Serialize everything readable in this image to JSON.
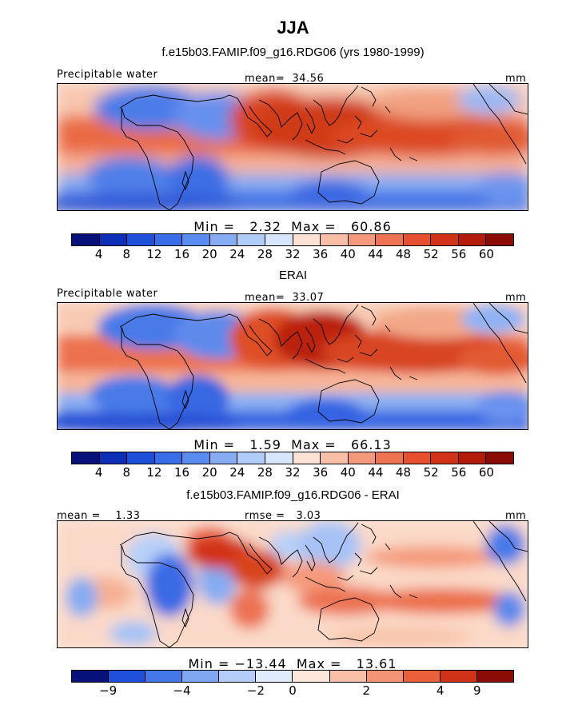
{
  "figure": {
    "title": "JJA",
    "subtitle": "f.e15b03.FAMIP.f09_g16.RDG06 (yrs 1980-1999)"
  },
  "chart_data": [
    {
      "type": "heatmap",
      "panel_label": "Precipitable water",
      "mean_label": "mean=  34.56",
      "units": "mm",
      "min": 2.32,
      "max": 60.86,
      "minmax_text": "Min =   2.32  Max =   60.86",
      "colorbar_ticks": [
        "4",
        "8",
        "12",
        "16",
        "20",
        "24",
        "28",
        "32",
        "36",
        "40",
        "44",
        "48",
        "52",
        "56",
        "60"
      ]
    },
    {
      "type": "heatmap",
      "title": "ERAI",
      "panel_label": "Precipitable water",
      "mean_label": "mean=  33.07",
      "units": "mm",
      "min": 1.59,
      "max": 66.13,
      "minmax_text": "Min =   1.59  Max =   66.13",
      "colorbar_ticks": [
        "4",
        "8",
        "12",
        "16",
        "20",
        "24",
        "28",
        "32",
        "36",
        "40",
        "44",
        "48",
        "52",
        "56",
        "60"
      ]
    },
    {
      "type": "heatmap",
      "title": "f.e15b03.FAMIP.f09_g16.RDG06 - ERAI",
      "mean_label": "mean =    1.33",
      "rmse_label": "rmse =   3.03",
      "units": "mm",
      "min": -13.44,
      "max": 13.61,
      "minmax_text": "Min = −13.44  Max =   13.61",
      "colorbar_ticks": [
        "−9",
        "−4",
        "−2",
        "0",
        "2",
        "4",
        "9"
      ]
    }
  ],
  "colors": {
    "palette16": [
      "#08107a",
      "#0d2fb8",
      "#1e4fd8",
      "#3a6ee8",
      "#5a8cf0",
      "#86acf4",
      "#b0ccf8",
      "#d8e6fb",
      "#fce2d4",
      "#f8bfa6",
      "#f49a7c",
      "#ee7352",
      "#e6502e",
      "#d23215",
      "#b31c0b",
      "#8b0c05"
    ],
    "palette12": [
      "#08107a",
      "#1e4fd8",
      "#4478e8",
      "#80a8f2",
      "#b4ccf8",
      "#e0ebfc",
      "#fde6da",
      "#f9c0a6",
      "#f39474",
      "#e9603a",
      "#d0321a",
      "#8b0c05"
    ]
  }
}
